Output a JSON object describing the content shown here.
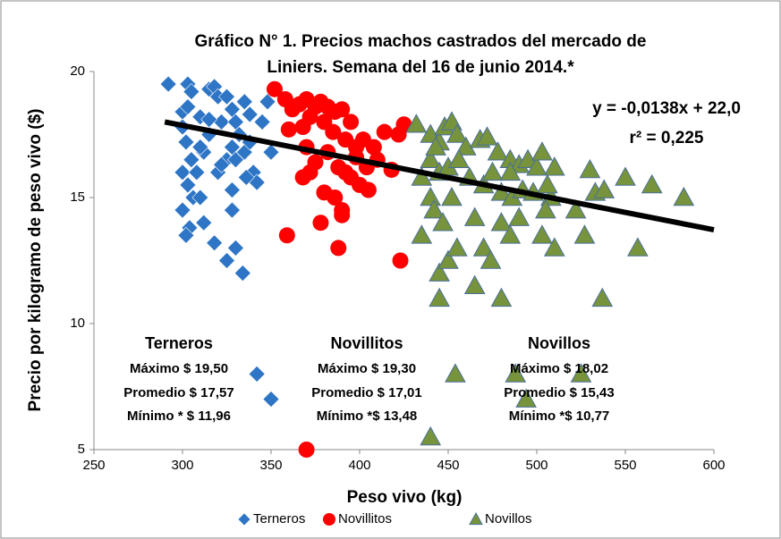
{
  "chart_data": {
    "type": "scatter",
    "title": [
      "Gráfico N° 1. Precios machos castrados del mercado de",
      "Liniers. Semana del 16 de junio 2014.*"
    ],
    "x_label": "Peso vivo (kg)",
    "y_label": "Precio por kilogramo de peso vivo ($)",
    "xlim": [
      250,
      600
    ],
    "ylim": [
      5,
      20
    ],
    "xticks": [
      250,
      300,
      350,
      400,
      450,
      500,
      550,
      600
    ],
    "yticks": [
      5,
      10,
      15,
      20
    ],
    "grid": false,
    "legend": "bottom",
    "equation": [
      "y = -0,0138x + 22,0",
      "r² = 0,225"
    ],
    "trendline": {
      "color": "#000000",
      "x": [
        290,
        600
      ],
      "values": [
        18.0,
        13.72
      ]
    },
    "annotations": [
      {
        "color": "#1f7bc6",
        "lines": [
          "Terneros",
          "Máximo  $ 19,50",
          "Promedio $ 17,57",
          "Mínimo * $ 11,96"
        ]
      },
      {
        "color": "#ff0000",
        "lines": [
          "Novillitos",
          "Máximo  $ 19,30",
          "Promedio $ 17,01",
          "Mínimo *$ 13,48"
        ]
      },
      {
        "color": "#5e6b2b",
        "lines": [
          "Novillos",
          "Máximo  $ 18,02",
          "Promedio $ 15,43",
          "Mínimo *$ 10,77"
        ]
      }
    ],
    "series": [
      {
        "name": "Terneros",
        "color": "#2e75c6",
        "marker": "diamond",
        "x": [
          292,
          300,
          303,
          305,
          300,
          302,
          305,
          300,
          303,
          306,
          300,
          304,
          302,
          312,
          310,
          308,
          312,
          315,
          310,
          315,
          318,
          320,
          325,
          328,
          322,
          330,
          335,
          338,
          332,
          328,
          325,
          320,
          330,
          335,
          340,
          342,
          338,
          345,
          348,
          350,
          318,
          325,
          330,
          334,
          328,
          328,
          315,
          310,
          342,
          350,
          303,
          322,
          336
        ],
        "values": [
          19.5,
          18.4,
          19.5,
          19.2,
          17.8,
          17.2,
          16.5,
          16,
          15.5,
          15,
          14.5,
          13.8,
          13.5,
          14,
          15,
          16,
          16.8,
          17.5,
          18.2,
          19.3,
          19.4,
          19,
          19,
          18.5,
          18,
          18,
          18.8,
          18.3,
          17.5,
          17,
          16.5,
          16,
          16.5,
          16.8,
          16,
          15.6,
          17.2,
          18,
          18.8,
          16.8,
          13.2,
          12.5,
          13,
          12,
          14.5,
          15.3,
          18.1,
          17,
          8,
          7,
          18.6,
          16.3,
          15.8
        ]
      },
      {
        "name": "Novillitos",
        "color": "#ff0000",
        "marker": "circle",
        "x": [
          352,
          358,
          362,
          366,
          370,
          375,
          378,
          382,
          386,
          390,
          372,
          368,
          380,
          385,
          395,
          392,
          398,
          402,
          408,
          414,
          422,
          425,
          360,
          370,
          375,
          382,
          388,
          392,
          398,
          404,
          410,
          418,
          368,
          372,
          380,
          386,
          390,
          395,
          400,
          405,
          390,
          378,
          359,
          388,
          423,
          370
        ],
        "values": [
          19.3,
          18.9,
          18.5,
          18.7,
          18.9,
          18.6,
          18.8,
          18.6,
          18.4,
          18.5,
          18.2,
          17.8,
          18,
          17.6,
          18,
          17.3,
          17,
          17.3,
          17,
          17.6,
          17.5,
          17.9,
          17.7,
          17,
          16.4,
          16.8,
          16.2,
          16,
          16.6,
          16.2,
          16.5,
          16.1,
          15.8,
          16,
          15.2,
          15,
          14.5,
          15.8,
          15.5,
          15.3,
          14.3,
          14,
          13.5,
          13,
          12.5,
          5
        ]
      },
      {
        "name": "Novillos",
        "color": "#77933c",
        "marker": "triangle",
        "x": [
          432,
          440,
          445,
          448,
          452,
          455,
          460,
          468,
          472,
          478,
          485,
          490,
          495,
          500,
          503,
          440,
          445,
          450,
          456,
          462,
          470,
          475,
          480,
          486,
          492,
          498,
          508,
          435,
          440,
          442,
          447,
          452,
          465,
          470,
          474,
          480,
          485,
          490,
          505,
          510,
          522,
          527,
          533,
          538,
          550,
          565,
          583,
          557,
          530,
          537,
          435,
          445,
          450,
          455,
          445,
          465,
          480,
          454,
          488,
          494,
          440,
          525,
          503,
          506,
          510,
          485,
          443
        ],
        "values": [
          17.9,
          17.5,
          17.2,
          17.8,
          18,
          17.5,
          17,
          17.3,
          17.4,
          16.8,
          16.5,
          16.3,
          16.5,
          16.2,
          16.8,
          16.5,
          16,
          16.2,
          16.5,
          15.8,
          15.5,
          16,
          15.2,
          15,
          15.3,
          15.2,
          15,
          15.8,
          15,
          14.5,
          14,
          15,
          14.2,
          13,
          12.5,
          14,
          13.5,
          14.2,
          14.5,
          13,
          14.5,
          13.5,
          15.2,
          15.3,
          15.8,
          15.5,
          15,
          13,
          16.1,
          11,
          13.5,
          12,
          12.5,
          13,
          11,
          11.5,
          11,
          8,
          8,
          7,
          5.5,
          8,
          13.5,
          15.5,
          16.2,
          16,
          17
        ]
      }
    ]
  }
}
